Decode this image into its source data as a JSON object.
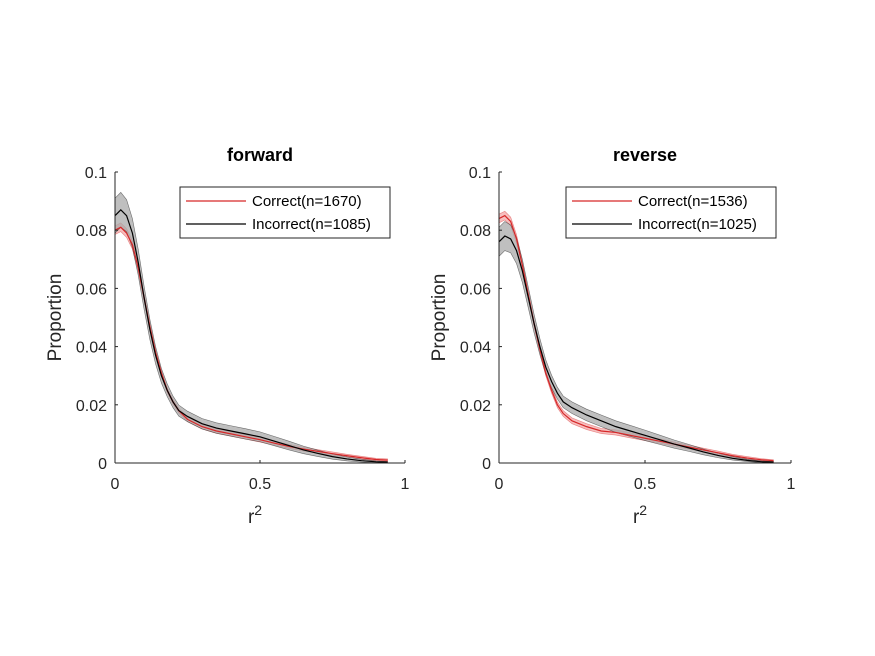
{
  "colors": {
    "correct_line": "#d62728",
    "correct_band": "#f4a3a3",
    "incorrect_line": "#000000",
    "incorrect_band": "#a9a9a9",
    "axis": "#262626"
  },
  "chart_data": [
    {
      "type": "line",
      "title": "forward",
      "xlabel": "r",
      "xlabel_sup": "2",
      "ylabel": "Proportion",
      "xlim": [
        0,
        1
      ],
      "ylim": [
        0,
        0.1
      ],
      "xticks": [
        0,
        0.5,
        1
      ],
      "xtick_labels": [
        "0",
        "0.5",
        "1"
      ],
      "yticks": [
        0,
        0.02,
        0.04,
        0.06,
        0.08,
        0.1
      ],
      "ytick_labels": [
        "0",
        "0.02",
        "0.04",
        "0.06",
        "0.08",
        "0.1"
      ],
      "grid": false,
      "legend_position": "top-right",
      "x": [
        0,
        0.02,
        0.04,
        0.06,
        0.08,
        0.1,
        0.12,
        0.14,
        0.16,
        0.18,
        0.2,
        0.22,
        0.25,
        0.3,
        0.35,
        0.4,
        0.45,
        0.5,
        0.55,
        0.6,
        0.65,
        0.7,
        0.75,
        0.8,
        0.85,
        0.9,
        0.94
      ],
      "series": [
        {
          "name": "Correct(n=1670)",
          "color_key": "correct",
          "values": [
            0.08,
            0.081,
            0.079,
            0.075,
            0.067,
            0.057,
            0.047,
            0.038,
            0.031,
            0.025,
            0.021,
            0.018,
            0.015,
            0.0125,
            0.011,
            0.01,
            0.009,
            0.008,
            0.0068,
            0.0057,
            0.0048,
            0.004,
            0.0032,
            0.0025,
            0.0018,
            0.0012,
            0.001
          ],
          "band_halfwidth": [
            0.0015,
            0.0015,
            0.0015,
            0.0015,
            0.0014,
            0.0013,
            0.0012,
            0.0011,
            0.001,
            0.0009,
            0.0009,
            0.0008,
            0.0008,
            0.0008,
            0.0008,
            0.0008,
            0.0008,
            0.0008,
            0.0007,
            0.0007,
            0.0007,
            0.0006,
            0.0006,
            0.0005,
            0.0005,
            0.0004,
            0.0004
          ]
        },
        {
          "name": "Incorrect(n=1085)",
          "color_key": "incorrect",
          "values": [
            0.085,
            0.087,
            0.085,
            0.079,
            0.069,
            0.057,
            0.046,
            0.037,
            0.03,
            0.025,
            0.021,
            0.018,
            0.016,
            0.0135,
            0.012,
            0.011,
            0.01,
            0.009,
            0.0075,
            0.006,
            0.0045,
            0.0033,
            0.0022,
            0.0014,
            0.0008,
            0.0004,
            0.0003
          ],
          "band_halfwidth": [
            0.006,
            0.006,
            0.0055,
            0.005,
            0.0045,
            0.004,
            0.0035,
            0.003,
            0.0025,
            0.0022,
            0.002,
            0.0019,
            0.0018,
            0.0018,
            0.0018,
            0.0018,
            0.0018,
            0.0017,
            0.0016,
            0.0015,
            0.0013,
            0.0011,
            0.0009,
            0.0007,
            0.0005,
            0.0003,
            0.0002
          ]
        }
      ]
    },
    {
      "type": "line",
      "title": "reverse",
      "xlabel": "r",
      "xlabel_sup": "2",
      "ylabel": "Proportion",
      "xlim": [
        0,
        1
      ],
      "ylim": [
        0,
        0.1
      ],
      "xticks": [
        0,
        0.5,
        1
      ],
      "xtick_labels": [
        "0",
        "0.5",
        "1"
      ],
      "yticks": [
        0,
        0.02,
        0.04,
        0.06,
        0.08,
        0.1
      ],
      "ytick_labels": [
        "0",
        "0.02",
        "0.04",
        "0.06",
        "0.08",
        "0.1"
      ],
      "grid": false,
      "legend_position": "top-right",
      "x": [
        0,
        0.02,
        0.04,
        0.06,
        0.08,
        0.1,
        0.12,
        0.14,
        0.16,
        0.18,
        0.2,
        0.22,
        0.25,
        0.3,
        0.35,
        0.4,
        0.45,
        0.5,
        0.55,
        0.6,
        0.65,
        0.7,
        0.75,
        0.8,
        0.85,
        0.9,
        0.94
      ],
      "series": [
        {
          "name": "Correct(n=1536)",
          "color_key": "correct",
          "values": [
            0.084,
            0.085,
            0.083,
            0.077,
            0.068,
            0.058,
            0.048,
            0.039,
            0.031,
            0.025,
            0.02,
            0.017,
            0.0145,
            0.0125,
            0.011,
            0.0105,
            0.0095,
            0.0085,
            0.0075,
            0.0065,
            0.0055,
            0.0045,
            0.0035,
            0.0025,
            0.0017,
            0.0011,
            0.0008
          ],
          "band_halfwidth": [
            0.0015,
            0.0015,
            0.0015,
            0.0015,
            0.0014,
            0.0013,
            0.0012,
            0.0011,
            0.001,
            0.001,
            0.001,
            0.001,
            0.001,
            0.001,
            0.0009,
            0.0009,
            0.0009,
            0.0008,
            0.0008,
            0.0007,
            0.0007,
            0.0006,
            0.0006,
            0.0005,
            0.0005,
            0.0004,
            0.0003
          ]
        },
        {
          "name": "Incorrect(n=1025)",
          "color_key": "incorrect",
          "values": [
            0.076,
            0.078,
            0.077,
            0.073,
            0.066,
            0.057,
            0.048,
            0.04,
            0.033,
            0.028,
            0.024,
            0.021,
            0.019,
            0.0165,
            0.0145,
            0.0125,
            0.011,
            0.0095,
            0.008,
            0.0065,
            0.0052,
            0.0038,
            0.0026,
            0.0016,
            0.0009,
            0.0004,
            0.0003
          ],
          "band_halfwidth": [
            0.005,
            0.005,
            0.0048,
            0.0045,
            0.004,
            0.0036,
            0.0032,
            0.0028,
            0.0025,
            0.0022,
            0.002,
            0.002,
            0.002,
            0.002,
            0.002,
            0.002,
            0.0019,
            0.0018,
            0.0016,
            0.0014,
            0.0012,
            0.001,
            0.0008,
            0.0006,
            0.0004,
            0.0003,
            0.0002
          ]
        }
      ]
    }
  ]
}
